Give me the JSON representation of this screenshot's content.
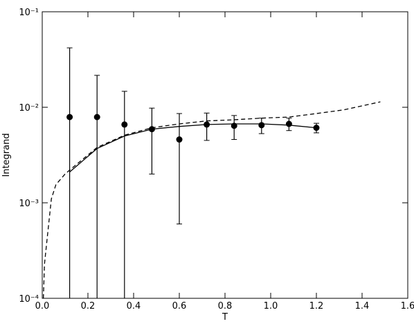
{
  "chart_data": {
    "type": "line",
    "xlabel": "T",
    "ylabel": "Integrand",
    "yscale": "log",
    "xlim": [
      0,
      1.6
    ],
    "xticks": [
      {
        "value": 0,
        "label": "0.0"
      },
      0.2,
      0.4,
      0.6,
      0.8,
      {
        "value": 1,
        "label": "1.0"
      },
      1.2,
      1.4,
      1.6
    ],
    "ylim": [
      0.0001,
      0.1
    ],
    "yticks": [
      {
        "value": 0.0001,
        "label": "10⁻⁴"
      },
      {
        "value": 0.001,
        "label": "10⁻³"
      },
      {
        "value": 0.01,
        "label": "10⁻²"
      },
      {
        "value": 0.1,
        "label": "10⁻¹"
      }
    ],
    "series": [
      {
        "style": "errorbar",
        "color": "#000000",
        "x": [
          0.12,
          0.24,
          0.36,
          0.48,
          0.6,
          0.72,
          0.84,
          0.96,
          1.08,
          1.2
        ],
        "values": [
          0.0079,
          0.0079,
          0.0066,
          0.0059,
          0.0046,
          0.0066,
          0.0064,
          0.0065,
          0.0067,
          0.0061
        ],
        "errors": [
          0.034,
          0.0137,
          0.0081,
          0.0039,
          0.004,
          0.0021,
          0.0018,
          0.0012,
          0.001,
          0.0007
        ]
      },
      {
        "style": "solid",
        "color": "#000000",
        "x": [
          0.12,
          0.24,
          0.36,
          0.48,
          0.6,
          0.72,
          0.84,
          0.96,
          1.08,
          1.2
        ],
        "values": [
          0.0021,
          0.0037,
          0.005,
          0.0059,
          0.0063,
          0.0066,
          0.0067,
          0.0067,
          0.0065,
          0.0061
        ]
      },
      {
        "style": "dashed",
        "color": "#000000",
        "x": [
          0.005,
          0.01,
          0.02,
          0.04,
          0.06,
          0.1,
          0.12,
          0.24,
          0.36,
          0.48,
          0.6,
          0.72,
          0.84,
          0.96,
          1.08,
          1.2,
          1.32,
          1.48
        ],
        "values": [
          0.0001,
          0.00023,
          0.00039,
          0.0011,
          0.00155,
          0.002,
          0.0022,
          0.0038,
          0.0051,
          0.0061,
          0.0067,
          0.0072,
          0.0074,
          0.0077,
          0.0079,
          0.0086,
          0.0094,
          0.0114
        ]
      }
    ]
  }
}
